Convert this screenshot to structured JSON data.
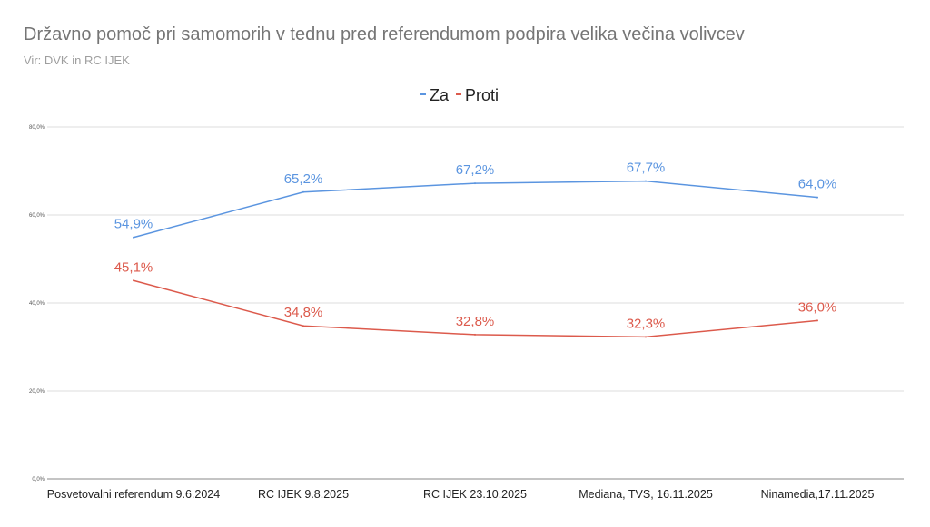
{
  "chart_data": {
    "type": "line",
    "title": "Državno pomoč pri samomorih v tednu pred referendumom podpira velika večina volivcev",
    "subtitle": "Vir: DVK in RC IJEK",
    "categories": [
      "Posvetovalni referendum 9.6.2024",
      "RC IJEK 9.8.2025",
      "RC IJEK 23.10.2025",
      "Mediana, TVS, 16.11.2025",
      "Ninamedia,17.11.2025"
    ],
    "series": [
      {
        "name": "Za",
        "color": "#5b95e0",
        "values": [
          54.9,
          65.2,
          67.2,
          67.7,
          64.0
        ],
        "labels": [
          "54,9%",
          "65,2%",
          "67,2%",
          "67,7%",
          "64,0%"
        ]
      },
      {
        "name": "Proti",
        "color": "#dc5a4c",
        "values": [
          45.1,
          34.8,
          32.8,
          32.3,
          36.0
        ],
        "labels": [
          "45,1%",
          "34,8%",
          "32,8%",
          "32,3%",
          "36,0%"
        ]
      }
    ],
    "yticks": [
      0,
      20,
      40,
      60,
      80
    ],
    "ytick_labels": [
      "0,0%",
      "20,0%",
      "40,0%",
      "60,0%",
      "80,0%"
    ],
    "ylim": [
      0,
      80
    ],
    "xlabel": "",
    "ylabel": "",
    "grid": true,
    "legend": "top-center"
  }
}
